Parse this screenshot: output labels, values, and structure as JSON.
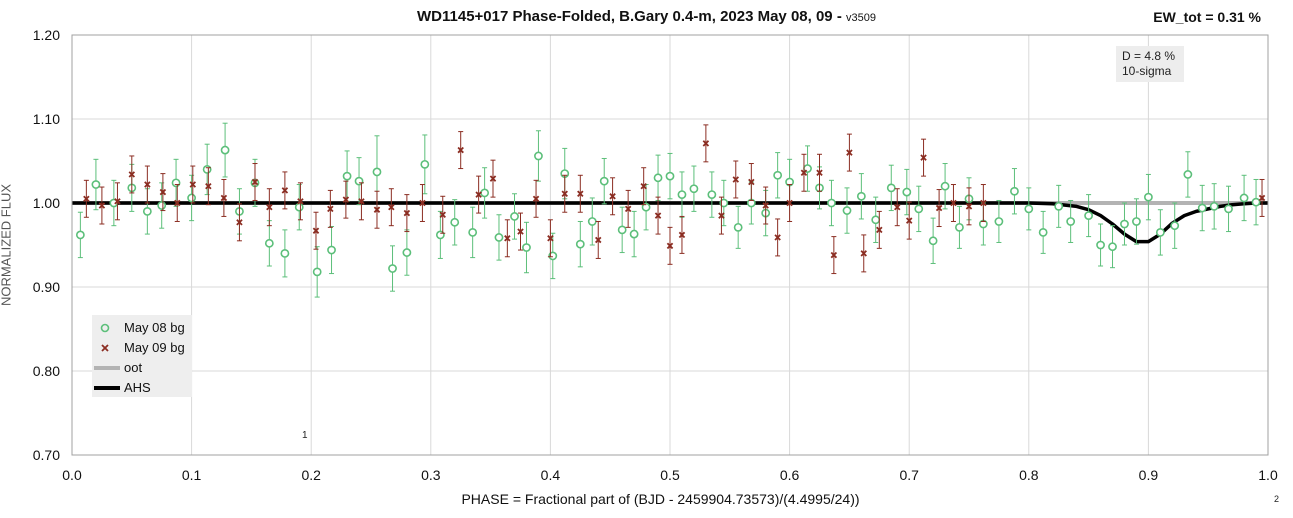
{
  "title": "WD1145+017 Phase-Folded, B.Gary 0.4-m, 2023 May 08, 09 -",
  "version": "v3509",
  "ew_label": "EW_tot = 0.31 %",
  "depth_box": {
    "line1": "D = 4.8 %",
    "line2": "10-sigma"
  },
  "corner_marks": {
    "m1": "1",
    "m2": "2"
  },
  "colors": {
    "may08": "#5cbf7a",
    "may09": "#8b2d22",
    "oot": "#b3b3b3",
    "ahs": "#000000",
    "grid": "#d9d9d9"
  },
  "chart_data": {
    "type": "scatter",
    "title": "WD1145+017 Phase-Folded, B.Gary 0.4-m, 2023 May 08, 09 - v3509",
    "xlabel": "PHASE = Fractional part of (BJD - 2459904.73573)/(4.4995/24))",
    "ylabel": "NORMALIZED FLUX",
    "xlim": [
      0.0,
      1.0
    ],
    "ylim": [
      0.7,
      1.2
    ],
    "xticks": [
      "0.0",
      "0.1",
      "0.2",
      "0.3",
      "0.4",
      "0.5",
      "0.6",
      "0.7",
      "0.8",
      "0.9",
      "1.0"
    ],
    "yticks": [
      "0.70",
      "0.80",
      "0.90",
      "1.00",
      "1.10",
      "1.20"
    ],
    "grid": true,
    "legend_position": "bottom-left",
    "series": [
      {
        "name": "May 08 bg",
        "marker": "open-circle",
        "x": [
          0.007,
          0.02,
          0.035,
          0.05,
          0.063,
          0.075,
          0.087,
          0.1,
          0.113,
          0.128,
          0.14,
          0.153,
          0.165,
          0.178,
          0.19,
          0.205,
          0.217,
          0.23,
          0.24,
          0.255,
          0.268,
          0.28,
          0.295,
          0.308,
          0.32,
          0.335,
          0.345,
          0.357,
          0.37,
          0.38,
          0.39,
          0.402,
          0.412,
          0.425,
          0.435,
          0.445,
          0.46,
          0.47,
          0.48,
          0.49,
          0.5,
          0.51,
          0.52,
          0.535,
          0.545,
          0.557,
          0.568,
          0.58,
          0.59,
          0.6,
          0.615,
          0.625,
          0.635,
          0.648,
          0.66,
          0.672,
          0.685,
          0.698,
          0.708,
          0.72,
          0.73,
          0.742,
          0.75,
          0.762,
          0.775,
          0.788,
          0.8,
          0.812,
          0.825,
          0.835,
          0.85,
          0.86,
          0.87,
          0.88,
          0.89,
          0.9,
          0.91,
          0.922,
          0.933,
          0.945,
          0.955,
          0.967,
          0.98,
          0.99
        ],
        "y": [
          0.962,
          1.022,
          1.0,
          1.018,
          0.99,
          0.997,
          1.024,
          1.006,
          1.04,
          1.063,
          0.99,
          1.024,
          0.952,
          0.94,
          0.995,
          0.918,
          0.944,
          1.032,
          1.026,
          1.037,
          0.922,
          0.941,
          1.046,
          0.962,
          0.977,
          0.965,
          1.012,
          0.959,
          0.984,
          0.947,
          1.056,
          0.937,
          1.035,
          0.951,
          0.978,
          1.026,
          0.968,
          0.963,
          0.995,
          1.03,
          1.032,
          1.01,
          1.017,
          1.01,
          1.0,
          0.971,
          1.0,
          0.988,
          1.033,
          1.025,
          1.041,
          1.018,
          1.0,
          0.991,
          1.008,
          0.98,
          1.018,
          1.013,
          0.993,
          0.955,
          1.02,
          0.971,
          1.005,
          0.975,
          0.978,
          1.014,
          0.993,
          0.965,
          0.996,
          0.978,
          0.985,
          0.95,
          0.948,
          0.975,
          0.978,
          1.007,
          0.965,
          0.973,
          1.034,
          0.994,
          0.996,
          0.993,
          1.006,
          1.001
        ],
        "err": [
          0.027,
          0.03,
          0.027,
          0.028,
          0.027,
          0.027,
          0.028,
          0.027,
          0.03,
          0.032,
          0.027,
          0.028,
          0.027,
          0.028,
          0.027,
          0.03,
          0.028,
          0.03,
          0.028,
          0.043,
          0.027,
          0.027,
          0.035,
          0.028,
          0.027,
          0.03,
          0.03,
          0.027,
          0.027,
          0.03,
          0.03,
          0.027,
          0.03,
          0.027,
          0.028,
          0.027,
          0.027,
          0.027,
          0.027,
          0.027,
          0.027,
          0.027,
          0.027,
          0.027,
          0.027,
          0.025,
          0.025,
          0.027,
          0.027,
          0.027,
          0.027,
          0.025,
          0.027,
          0.027,
          0.027,
          0.027,
          0.027,
          0.027,
          0.027,
          0.027,
          0.027,
          0.025,
          0.025,
          0.025,
          0.025,
          0.027,
          0.025,
          0.025,
          0.025,
          0.025,
          0.025,
          0.025,
          0.025,
          0.025,
          0.027,
          0.027,
          0.027,
          0.027,
          0.027,
          0.027,
          0.027,
          0.027,
          0.027,
          0.027
        ]
      },
      {
        "name": "May 09 bg",
        "marker": "x",
        "x": [
          0.012,
          0.025,
          0.038,
          0.05,
          0.063,
          0.076,
          0.088,
          0.101,
          0.114,
          0.127,
          0.14,
          0.153,
          0.165,
          0.178,
          0.191,
          0.204,
          0.216,
          0.229,
          0.242,
          0.255,
          0.267,
          0.28,
          0.293,
          0.31,
          0.325,
          0.34,
          0.352,
          0.364,
          0.375,
          0.388,
          0.4,
          0.412,
          0.425,
          0.44,
          0.452,
          0.465,
          0.478,
          0.49,
          0.5,
          0.51,
          0.53,
          0.543,
          0.555,
          0.568,
          0.58,
          0.59,
          0.6,
          0.612,
          0.625,
          0.637,
          0.65,
          0.662,
          0.675,
          0.69,
          0.7,
          0.712,
          0.725,
          0.737,
          0.75,
          0.762,
          0.995
        ],
        "y": [
          1.005,
          0.997,
          1.002,
          1.034,
          1.022,
          1.013,
          1.0,
          1.022,
          1.02,
          1.006,
          0.977,
          1.025,
          0.995,
          1.015,
          1.002,
          0.967,
          0.993,
          1.004,
          1.002,
          0.992,
          0.995,
          0.988,
          1.0,
          0.986,
          1.063,
          1.01,
          1.029,
          0.958,
          0.966,
          1.005,
          0.958,
          1.011,
          1.011,
          0.956,
          1.008,
          0.993,
          1.02,
          0.985,
          0.949,
          0.962,
          1.071,
          0.985,
          1.028,
          1.025,
          0.997,
          0.959,
          1.0,
          1.036,
          1.036,
          0.938,
          1.06,
          0.94,
          0.968,
          0.995,
          0.979,
          1.054,
          0.994,
          1.0,
          0.996,
          1.0,
          1.006
        ]
      },
      {
        "name": "oot",
        "type": "line",
        "x": [
          0.0,
          1.0
        ],
        "y": [
          1.0,
          1.0
        ]
      },
      {
        "name": "AHS",
        "type": "line",
        "x": [
          0.0,
          0.8,
          0.82,
          0.84,
          0.85,
          0.86,
          0.87,
          0.88,
          0.89,
          0.9,
          0.91,
          0.92,
          0.93,
          0.94,
          0.95,
          0.96,
          0.97,
          0.98,
          0.99,
          1.0
        ],
        "y": [
          1.0,
          1.0,
          0.999,
          0.996,
          0.992,
          0.985,
          0.975,
          0.963,
          0.954,
          0.954,
          0.963,
          0.976,
          0.985,
          0.99,
          0.993,
          0.996,
          0.998,
          0.999,
          1.0,
          1.0
        ]
      }
    ]
  }
}
